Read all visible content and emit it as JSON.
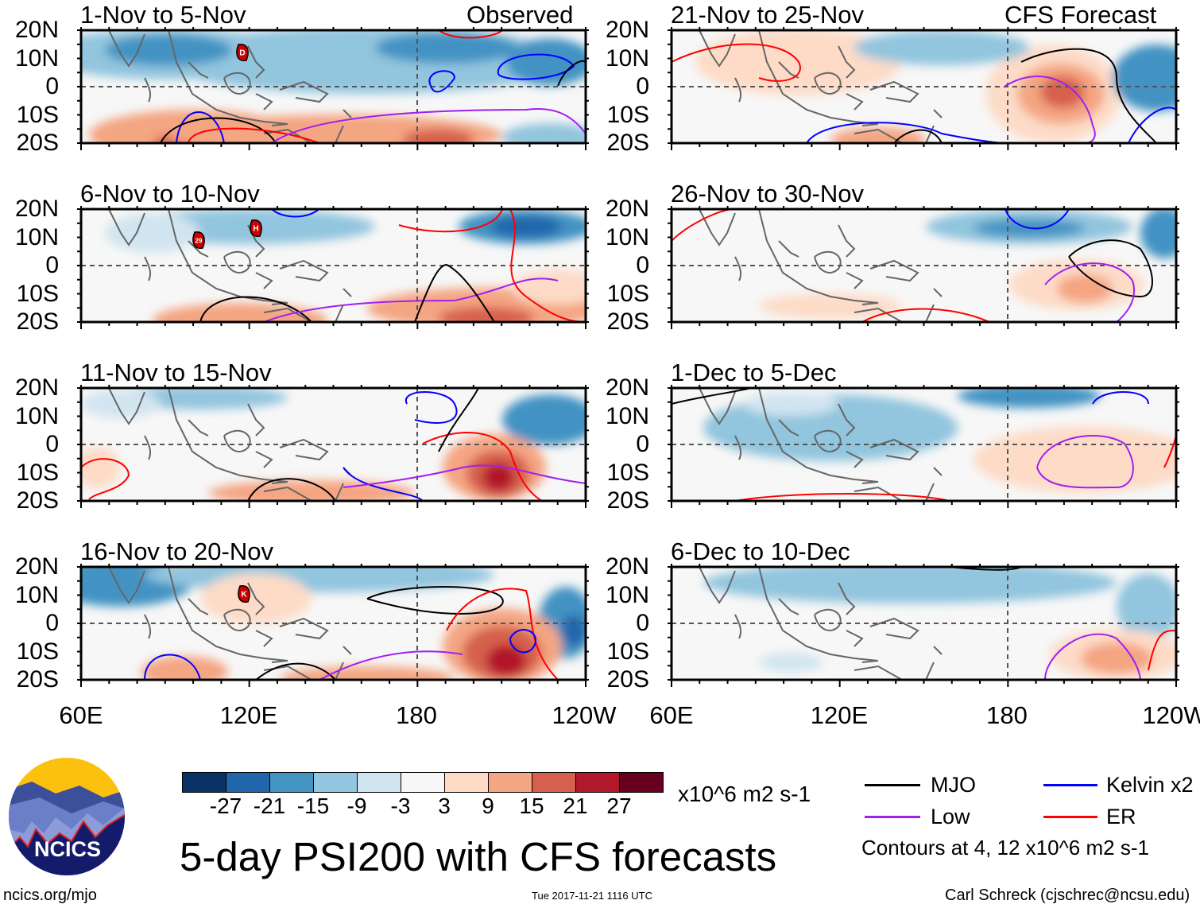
{
  "title": "5-day PSI200 with CFS forecasts",
  "units": "x10^6 m2 s-1",
  "logo_text": "NCICS",
  "footer": {
    "left": "ncics.org/mjo",
    "center": "Tue 2017-11-21 1116 UTC",
    "right": "Carl Schreck (cjschrec@ncsu.edu)"
  },
  "chart_data": {
    "type": "heatmap",
    "title": "5-day PSI200 with CFS forecasts",
    "column_labels": {
      "left": "Observed",
      "right": "CFS Forecast"
    },
    "ytick_labels": [
      "20N",
      "10N",
      "0",
      "10S",
      "20S"
    ],
    "xtick_labels": [
      "60E",
      "120E",
      "180",
      "120W"
    ],
    "lat_range": [
      -20,
      20
    ],
    "lon_range": [
      60,
      240
    ],
    "panels": [
      {
        "title": "1-Nov to 5-Nov",
        "source": "Observed",
        "storms": [
          "D"
        ]
      },
      {
        "title": "6-Nov to 10-Nov",
        "source": "Observed",
        "storms": [
          "29",
          "H"
        ]
      },
      {
        "title": "11-Nov to 15-Nov",
        "source": "Observed",
        "storms": []
      },
      {
        "title": "16-Nov to 20-Nov",
        "source": "Observed",
        "storms": [
          "K"
        ]
      },
      {
        "title": "21-Nov to 25-Nov",
        "source": "CFS Forecast",
        "storms": []
      },
      {
        "title": "26-Nov to 30-Nov",
        "source": "CFS Forecast",
        "storms": []
      },
      {
        "title": "1-Dec to 5-Dec",
        "source": "CFS Forecast",
        "storms": []
      },
      {
        "title": "6-Dec to 10-Dec",
        "source": "CFS Forecast",
        "storms": []
      }
    ],
    "colorbar": {
      "labels": [
        "-27",
        "-21",
        "-15",
        "-9",
        "-3",
        "3",
        "9",
        "15",
        "21",
        "27"
      ],
      "colors": [
        "#0a3264",
        "#2166ac",
        "#4393c3",
        "#92c5de",
        "#d1e5f0",
        "#f7f7f7",
        "#fddbc7",
        "#f4a582",
        "#d6604d",
        "#b2182b",
        "#67001f"
      ]
    },
    "legend": [
      {
        "label": "MJO",
        "color": "#000000"
      },
      {
        "label": "Kelvin x2",
        "color": "#0000ff"
      },
      {
        "label": "Low",
        "color": "#a020f0"
      },
      {
        "label": "ER",
        "color": "#ff0000"
      }
    ],
    "contour_note": "Contours at 4, 12 x10^6 m2 s-1"
  }
}
